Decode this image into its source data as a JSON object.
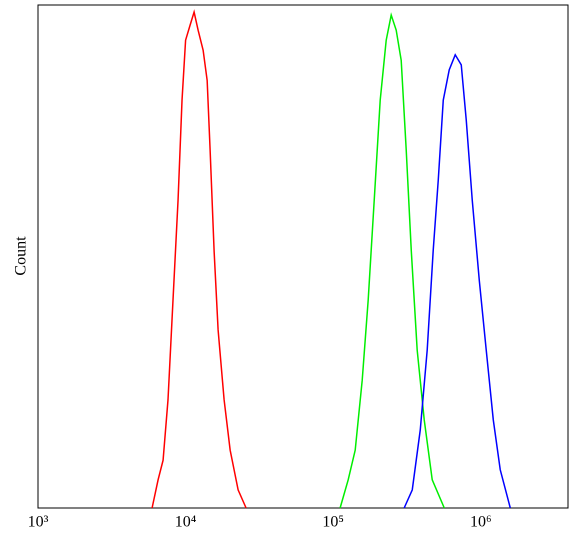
{
  "chart_data": {
    "type": "line",
    "y_label": "Count",
    "xscale": "log",
    "xlim": [
      1000,
      3900000
    ],
    "ylim": [
      0,
      100
    ],
    "xticks": [
      {
        "value": 1000,
        "label": "10³"
      },
      {
        "value": 10000,
        "label": "10⁴"
      },
      {
        "value": 100000,
        "label": "10⁵"
      },
      {
        "value": 1000000,
        "label": "10⁶"
      }
    ],
    "series": [
      {
        "color": "#ff0000",
        "x": [
          5930,
          6512,
          7040,
          7600,
          8220,
          8890,
          9460,
          10000,
          10730,
          11420,
          12160,
          13150,
          14000,
          14670,
          15610,
          16610,
          18240,
          20040,
          22700,
          25700
        ],
        "values": [
          0,
          5.6,
          9.5,
          21.5,
          41.4,
          61.2,
          81.1,
          93,
          96,
          98.6,
          95,
          91,
          85,
          71,
          51,
          35.4,
          21.5,
          11.5,
          3.6,
          0
        ]
      },
      {
        "color": "#00ee00",
        "x": [
          111400,
          126400,
          141000,
          157300,
          172700,
          189700,
          208300,
          228700,
          247300,
          267300,
          289000,
          312500,
          338000,
          370800,
          414000,
          469000,
          566000
        ],
        "values": [
          0,
          5.6,
          11.5,
          25.4,
          41.4,
          61.2,
          81.1,
          93,
          98,
          95,
          89,
          71.2,
          51.3,
          31.4,
          17.5,
          5.6,
          0
        ]
      },
      {
        "color": "#0000ff",
        "x": [
          302700,
          343400,
          389000,
          433600,
          476400,
          515200,
          557100,
          611400,
          671400,
          737500,
          797500,
          875600,
          977000,
          1089000,
          1216000,
          1355000,
          1585000
        ],
        "values": [
          0,
          3.6,
          15.5,
          31.4,
          51.3,
          65.2,
          81.1,
          87.1,
          90.1,
          88.1,
          77.1,
          61.2,
          45.3,
          31.4,
          17.5,
          7.6,
          0
        ]
      }
    ]
  }
}
